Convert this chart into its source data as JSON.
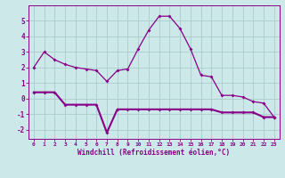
{
  "xlabel": "Windchill (Refroidissement éolien,°C)",
  "background_color": "#cce8e8",
  "grid_color": "#aacccc",
  "line_color": "#880088",
  "hours": [
    0,
    1,
    2,
    3,
    4,
    5,
    6,
    7,
    8,
    9,
    10,
    11,
    12,
    13,
    14,
    15,
    16,
    17,
    18,
    19,
    20,
    21,
    22,
    23
  ],
  "temp": [
    2.0,
    3.0,
    2.5,
    2.2,
    2.0,
    1.9,
    1.8,
    1.1,
    1.8,
    1.9,
    3.2,
    4.4,
    5.3,
    5.3,
    4.5,
    3.2,
    1.5,
    1.4,
    0.2,
    0.2,
    0.1,
    -0.2,
    -0.3,
    -1.2
  ],
  "windchill": [
    0.4,
    0.4,
    0.4,
    -0.4,
    -0.4,
    -0.4,
    -0.4,
    -2.2,
    -0.7,
    -0.7,
    -0.7,
    -0.7,
    -0.7,
    -0.7,
    -0.7,
    -0.7,
    -0.7,
    -0.7,
    -0.9,
    -0.9,
    -0.9,
    -0.9,
    -1.2,
    -1.2
  ],
  "ylim": [
    -2.6,
    6.0
  ],
  "yticks": [
    -2,
    -1,
    0,
    1,
    2,
    3,
    4,
    5
  ],
  "xticks": [
    0,
    1,
    2,
    3,
    4,
    5,
    6,
    7,
    8,
    9,
    10,
    11,
    12,
    13,
    14,
    15,
    16,
    17,
    18,
    19,
    20,
    21,
    22,
    23
  ],
  "figwidth": 3.2,
  "figheight": 2.0,
  "dpi": 100
}
